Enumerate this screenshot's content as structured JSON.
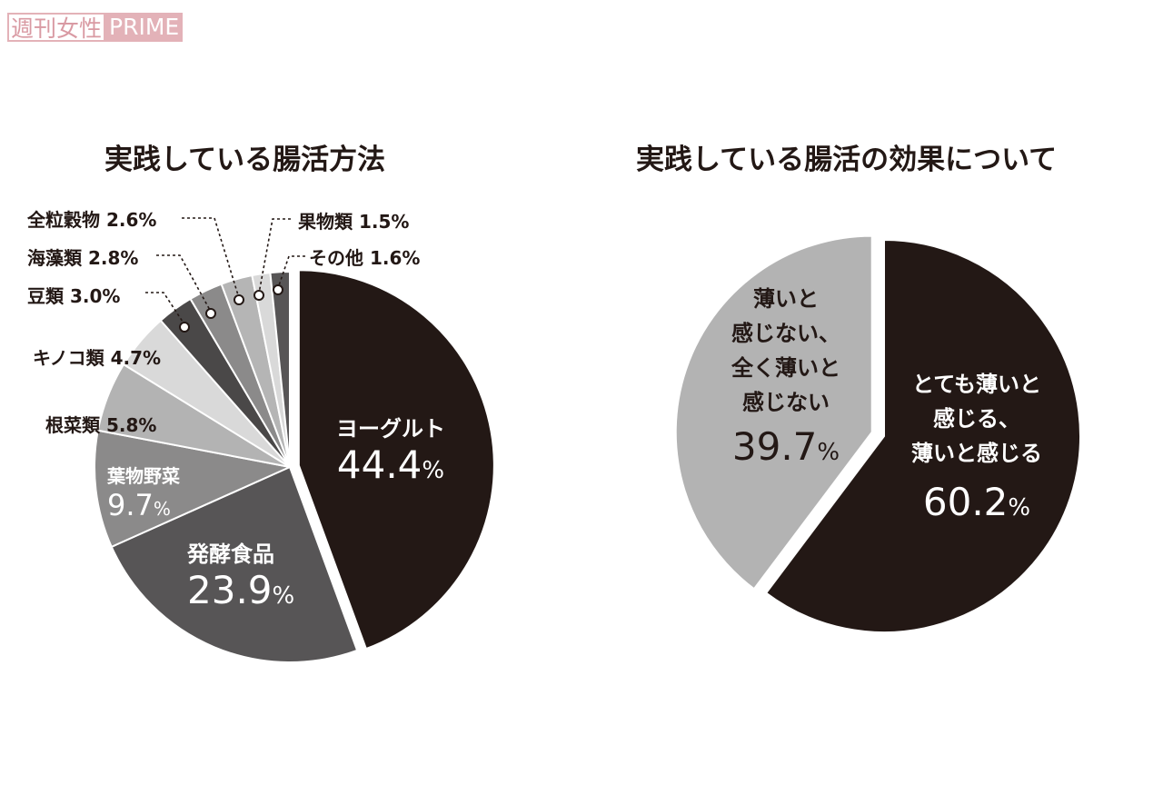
{
  "watermark": {
    "part1": "週刊女性",
    "part2": "PRIME"
  },
  "chart_data": [
    {
      "type": "pie",
      "title": "実践している腸活方法",
      "unit": "%",
      "direction": "clockwise from top",
      "slices": [
        {
          "label": "ヨーグルト",
          "value": 44.4,
          "value_text": "44.4",
          "color": "#231815",
          "exploded": true
        },
        {
          "label": "発酵食品",
          "value": 23.9,
          "value_text": "23.9",
          "color": "#575556"
        },
        {
          "label": "葉物野菜",
          "value": 9.7,
          "value_text": "9.7",
          "color": "#8b8a8a"
        },
        {
          "label": "根菜類",
          "value": 5.8,
          "value_text": "5.8",
          "color": "#b3b3b3"
        },
        {
          "label": "キノコ類",
          "value": 4.7,
          "value_text": "4.7",
          "color": "#d9d9d9"
        },
        {
          "label": "豆類",
          "value": 3.0,
          "value_text": "3.0",
          "color": "#4a4848"
        },
        {
          "label": "海藻類",
          "value": 2.8,
          "value_text": "2.8",
          "color": "#8b8a8a"
        },
        {
          "label": "全粒穀物",
          "value": 2.6,
          "value_text": "2.6",
          "color": "#b5b5b5"
        },
        {
          "label": "果物類",
          "value": 1.5,
          "value_text": "1.5",
          "color": "#d9d9d9"
        },
        {
          "label": "その他",
          "value": 1.6,
          "value_text": "1.6",
          "color": "#575556"
        }
      ]
    },
    {
      "type": "pie",
      "title": "実践している腸活の効果について",
      "unit": "%",
      "direction": "clockwise from top",
      "slices": [
        {
          "label": [
            "とても薄いと",
            "感じる、",
            "薄いと感じる"
          ],
          "value": 60.2,
          "value_text": "60.2",
          "color": "#231815"
        },
        {
          "label": [
            "薄いと",
            "感じない、",
            "全く薄いと",
            "感じない"
          ],
          "value": 39.7,
          "value_text": "39.7",
          "color": "#b3b3b3",
          "exploded": true
        }
      ]
    }
  ]
}
